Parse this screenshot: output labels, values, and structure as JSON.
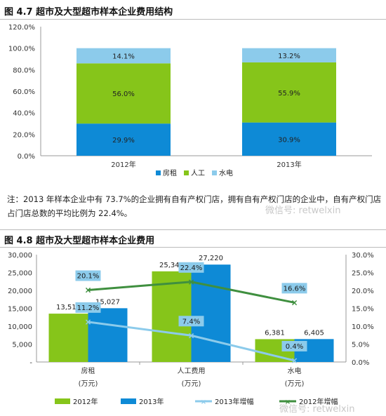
{
  "figure1": {
    "title": "图 4.7 超市及大型超市样本企业费用结构",
    "legend": [
      "房租",
      "人工",
      "水电"
    ],
    "note": "注：2013 年样本企业中有 73.7%的企业拥有自有产权门店，拥有自有产权门店的企业中，自有产权门店占门店总数的平均比例为 22.4%。",
    "colors": {
      "房租": "#0e8ad6",
      "人工": "#86c51a",
      "水电": "#8ccbeb"
    }
  },
  "figure2": {
    "title": "图 4.8 超市及大型超市样本企业费用",
    "legend": [
      "2012年",
      "2013年",
      "2013年增幅",
      "2012年增幅"
    ],
    "category_sublabel": "(万元)",
    "colors": {
      "2012年": "#86c51a",
      "2013年": "#0e8ad6",
      "2013年增幅": "#8ccbeb",
      "2012年增幅": "#3f8f3f"
    }
  },
  "watermark": "微信号: retwelxin",
  "chart_data": [
    {
      "type": "bar",
      "stacked": true,
      "categories": [
        "2012年",
        "2013年"
      ],
      "series": [
        {
          "name": "房租",
          "values": [
            29.9,
            30.9
          ]
        },
        {
          "name": "人工",
          "values": [
            56.0,
            55.9
          ]
        },
        {
          "name": "水电",
          "values": [
            14.1,
            13.2
          ]
        }
      ],
      "ylim": [
        0,
        120
      ],
      "yticks": [
        "0.0%",
        "20.0%",
        "40.0%",
        "60.0%",
        "80.0%",
        "100.0%",
        "120.0%"
      ],
      "legend_position": "bottom"
    },
    {
      "type": "bar",
      "categories": [
        "房租",
        "人工费用",
        "水电"
      ],
      "series": [
        {
          "name": "2012年",
          "values": [
            13512,
            25340,
            6381
          ],
          "labels": [
            "13,512",
            "25,340",
            "6,381"
          ]
        },
        {
          "name": "2013年",
          "values": [
            15027,
            27220,
            6405
          ],
          "labels": [
            "15,027",
            "27,220",
            "6,405"
          ]
        },
        {
          "name": "2013年增幅",
          "type": "line",
          "axis": "right",
          "values": [
            11.2,
            7.4,
            0.4
          ],
          "labels": [
            "11.2%",
            "7.4%",
            "0.4%"
          ]
        },
        {
          "name": "2012年增幅",
          "type": "line",
          "axis": "right",
          "values": [
            20.1,
            22.4,
            16.6
          ],
          "labels": [
            "20.1%",
            "22.4%",
            "16.6%"
          ]
        }
      ],
      "ylim": [
        0,
        30000
      ],
      "yticks": [
        "-",
        "5,000",
        "10,000",
        "15,000",
        "20,000",
        "25,000",
        "30,000"
      ],
      "y2lim": [
        0,
        30
      ],
      "y2ticks": [
        "0.0%",
        "5.0%",
        "10.0%",
        "15.0%",
        "20.0%",
        "25.0%",
        "30.0%"
      ],
      "legend_position": "bottom"
    }
  ]
}
